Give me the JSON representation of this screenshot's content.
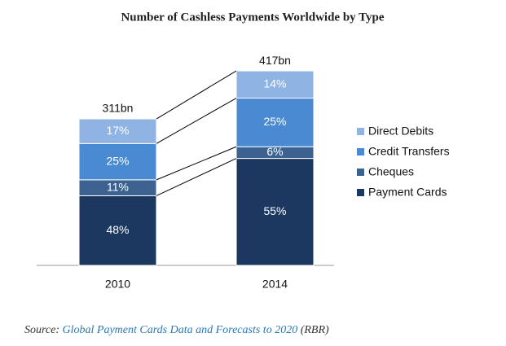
{
  "chart_data": {
    "type": "stacked-bar",
    "title": "Number of Cashless Payments Worldwide by Type",
    "categories": [
      "2010",
      "2014"
    ],
    "totals": {
      "values": [
        311,
        417
      ],
      "value_labels": [
        "311bn",
        "417bn"
      ]
    },
    "series": [
      {
        "name": "Payment Cards",
        "color": "#1c3861",
        "values": [
          48,
          55
        ],
        "value_labels": [
          "48%",
          "55%"
        ]
      },
      {
        "name": "Cheques",
        "color": "#3b6290",
        "values": [
          11,
          6
        ],
        "value_labels": [
          "11%",
          "6%"
        ]
      },
      {
        "name": "Credit Transfers",
        "color": "#4a8ad3",
        "values": [
          25,
          25
        ],
        "value_labels": [
          "25%",
          "25%"
        ]
      },
      {
        "name": "Direct Debits",
        "color": "#8fb4e3",
        "values": [
          17,
          14
        ],
        "value_labels": [
          "17%",
          "14%"
        ]
      }
    ],
    "source": {
      "label": "Source:",
      "link": "Global Payment Cards Data and Forecasts to 2020",
      "suffix": "(RBR)"
    }
  }
}
